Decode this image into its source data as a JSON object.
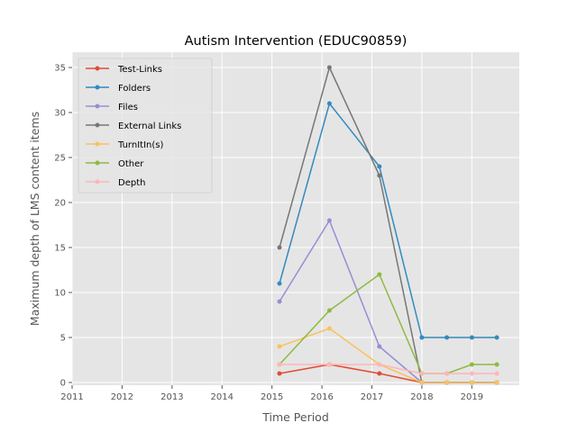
{
  "chart_data": {
    "type": "line",
    "title": "Autism Intervention (EDUC90859)",
    "xlabel": "Time Period",
    "ylabel": "Maximum depth of LMS content items",
    "xlim": [
      2011,
      2019.95
    ],
    "ylim": [
      -0.3,
      36.7
    ],
    "xticks": [
      2011,
      2012,
      2013,
      2014,
      2015,
      2016,
      2017,
      2018,
      2019
    ],
    "yticks": [
      0,
      5,
      10,
      15,
      20,
      25,
      30,
      35
    ],
    "grid": true,
    "legend_position": "top-left",
    "x": [
      2015.15,
      2016.15,
      2017.15,
      2018.0,
      2018.5,
      2019.0,
      2019.5
    ],
    "series": [
      {
        "name": "Test-Links",
        "color": "#E24A33",
        "values": [
          1,
          2,
          1,
          0,
          0,
          0,
          0
        ]
      },
      {
        "name": "Folders",
        "color": "#348ABD",
        "values": [
          11,
          31,
          24,
          5,
          5,
          5,
          5
        ]
      },
      {
        "name": "Files",
        "color": "#988ED5",
        "values": [
          9,
          18,
          4,
          0,
          0,
          0,
          0
        ]
      },
      {
        "name": "External Links",
        "color": "#777777",
        "values": [
          15,
          35,
          23,
          0,
          0,
          0,
          0
        ]
      },
      {
        "name": "TurnItIn(s)",
        "color": "#FBC15E",
        "values": [
          4,
          6,
          2,
          0,
          0,
          0,
          0
        ]
      },
      {
        "name": "Other",
        "color": "#8EBA42",
        "values": [
          2,
          8,
          12,
          1,
          1,
          2,
          2
        ]
      },
      {
        "name": "Depth",
        "color": "#FFB5B8",
        "values": [
          2,
          2,
          2,
          1,
          1,
          1,
          1
        ]
      }
    ]
  }
}
